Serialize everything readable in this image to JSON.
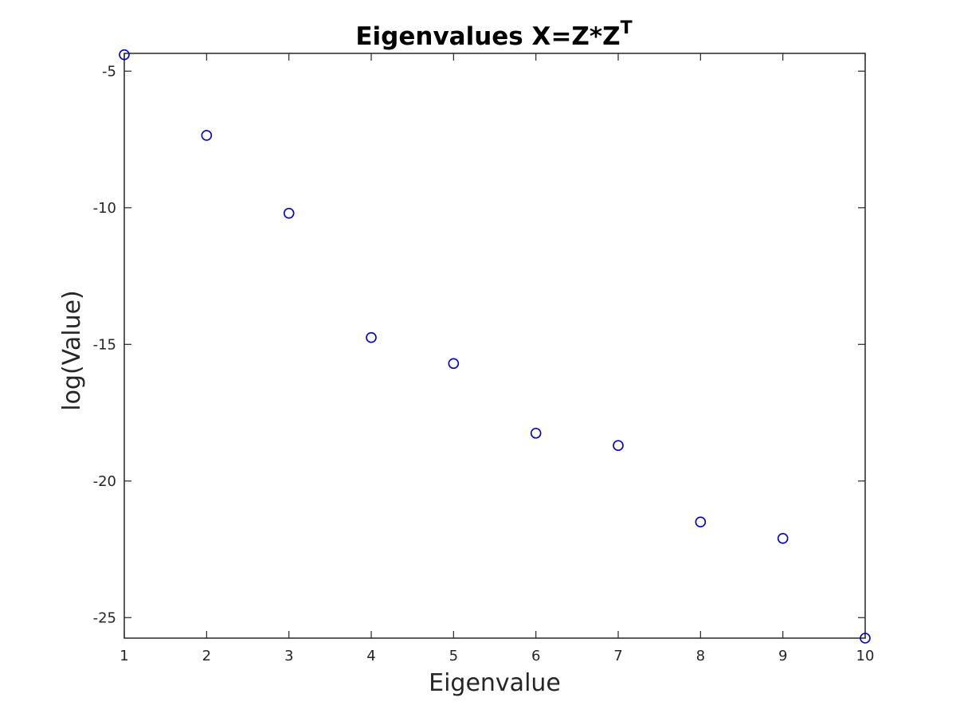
{
  "chart_data": {
    "type": "scatter",
    "title": "Eigenvalues X=Z*Z",
    "title_superscript": "T",
    "xlabel": "Eigenvalue",
    "ylabel": "log(Value)",
    "xlim": [
      1,
      10
    ],
    "ylim": [
      -25.75,
      -4.35
    ],
    "xticks": [
      1,
      2,
      3,
      4,
      5,
      6,
      7,
      8,
      9,
      10
    ],
    "yticks": [
      -5,
      -10,
      -15,
      -20,
      -25
    ],
    "ytick_labels": [
      "-5",
      "-10",
      "-15",
      "-20",
      "-25"
    ],
    "grid": false,
    "box": true,
    "marker": "circle",
    "marker_color": "#0000cd",
    "axis_color": "#262626",
    "series": [
      {
        "x": [
          1,
          2,
          3,
          4,
          5,
          6,
          7,
          8,
          9,
          10
        ],
        "y": [
          -4.4,
          -7.35,
          -10.2,
          -14.75,
          -15.7,
          -18.25,
          -18.7,
          -21.5,
          -22.1,
          -25.75
        ]
      }
    ]
  }
}
